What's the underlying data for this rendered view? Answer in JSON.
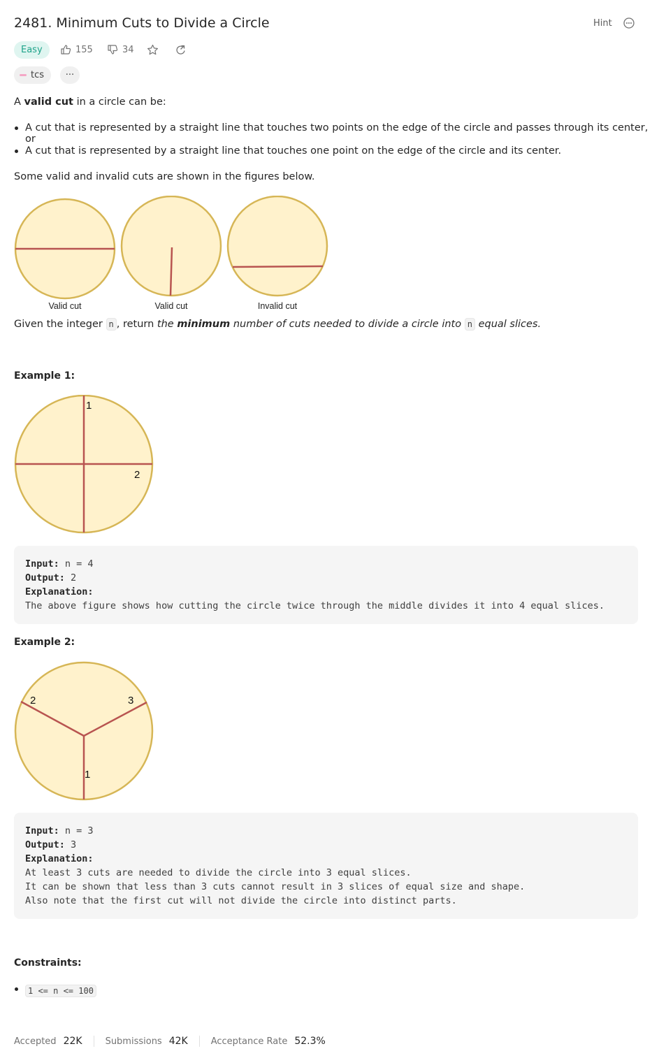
{
  "problem": {
    "title": "2481. Minimum Cuts to Divide a Circle",
    "hint_label": "Hint",
    "difficulty": "Easy",
    "likes": "155",
    "dislikes": "34",
    "tag_chip": "tcs",
    "more_chip": "···"
  },
  "description": {
    "intro_prefix": "A ",
    "intro_bold": "valid cut",
    "intro_suffix": " in a circle can be:",
    "bullets": [
      "A cut that is represented by a straight line that touches two points on the edge of the circle and passes through its center, or",
      "A cut that is represented by a straight line that touches one point on the edge of the circle and its center."
    ],
    "figures_note": "Some valid and invalid cuts are shown in the figures below.",
    "figure_captions": [
      "Valid cut",
      "Valid cut",
      "Invalid cut"
    ],
    "given_1": "Given the integer ",
    "given_code_1": "n",
    "given_2": ", return ",
    "given_em_1": "the ",
    "given_strong": "minimum",
    "given_em_2": " number of cuts needed to divide a circle into ",
    "given_code_2": "n",
    "given_em_3": " equal slices."
  },
  "examples": [
    {
      "heading": "Example 1:",
      "figure_labels": [
        "1",
        "2"
      ],
      "input_label": "Input:",
      "input_value": " n = 4",
      "output_label": "Output:",
      "output_value": " 2",
      "explanation_label": "Explanation:",
      "explanation_lines": [
        "The above figure shows how cutting the circle twice through the middle divides it into 4 equal slices."
      ]
    },
    {
      "heading": "Example 2:",
      "figure_labels": [
        "2",
        "3",
        "1"
      ],
      "input_label": "Input:",
      "input_value": " n = 3",
      "output_label": "Output:",
      "output_value": " 3",
      "explanation_label": "Explanation:",
      "explanation_lines": [
        "At least 3 cuts are needed to divide the circle into 3 equal slices.",
        "It can be shown that less than 3 cuts cannot result in 3 slices of equal size and shape.",
        "Also note that the first cut will not divide the circle into distinct parts."
      ]
    }
  ],
  "constraints": {
    "heading": "Constraints:",
    "items": [
      "1 <= n <= 100"
    ]
  },
  "stats": {
    "accepted_label": "Accepted",
    "accepted_value": "22K",
    "submissions_label": "Submissions",
    "submissions_value": "42K",
    "rate_label": "Acceptance Rate",
    "rate_value": "52.3%"
  },
  "colors": {
    "circle_fill": "#fff2cc",
    "circle_stroke": "#d6b656",
    "cut_line": "#b85450",
    "easy_bg": "#dff5f0",
    "easy_text": "#1fa38a"
  },
  "icons": [
    "thumbs-up-icon",
    "thumbs-down-icon",
    "star-icon",
    "share-icon",
    "more-options-icon",
    "tag-icon"
  ]
}
